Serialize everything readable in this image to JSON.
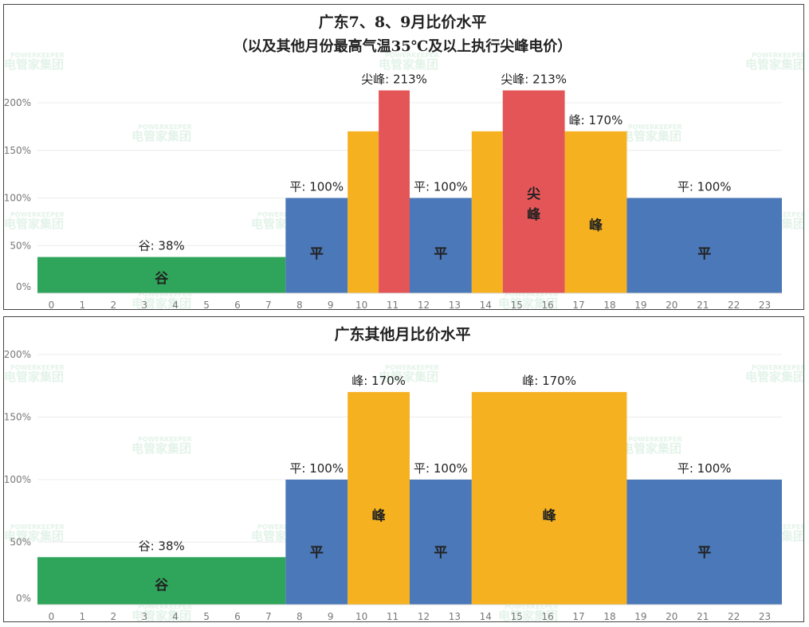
{
  "watermark": {
    "brand_en": "POWERKEEPER",
    "brand_cn": "电管家集团"
  },
  "colors": {
    "谷": "#2ea55a",
    "平": "#4a78b8",
    "峰": "#f5b120",
    "尖峰": "#e45558",
    "grid": "#ececec"
  },
  "chart_data": [
    {
      "type": "bar",
      "title": "广东7、8、9月比价水平",
      "subtitle": "（以及其他月份最高气温35℃及以上执行尖峰电价）",
      "xlabel": "",
      "ylabel": "",
      "x_ticks": [
        "0",
        "1",
        "2",
        "3",
        "4",
        "5",
        "6",
        "7",
        "8",
        "9",
        "10",
        "11",
        "12",
        "13",
        "14",
        "15",
        "16",
        "17",
        "18",
        "19",
        "20",
        "21",
        "22",
        "23"
      ],
      "y_ticks": [
        "0%",
        "50%",
        "100%",
        "150%",
        "200%"
      ],
      "ylim": [
        0,
        200
      ],
      "grid": true,
      "segments": [
        {
          "start": 0,
          "end": 8,
          "value": 38,
          "type": "谷",
          "label": "谷: 38%",
          "inner": "谷"
        },
        {
          "start": 8,
          "end": 10,
          "value": 100,
          "type": "平",
          "label": "平: 100%",
          "inner": "平"
        },
        {
          "start": 10,
          "end": 11,
          "value": 170,
          "type": "峰",
          "label": "",
          "inner": ""
        },
        {
          "start": 11,
          "end": 12,
          "value": 213,
          "type": "尖峰",
          "label": "尖峰: 213%",
          "inner": ""
        },
        {
          "start": 12,
          "end": 14,
          "value": 100,
          "type": "平",
          "label": "平: 100%",
          "inner": "平"
        },
        {
          "start": 14,
          "end": 15,
          "value": 170,
          "type": "峰",
          "label": "",
          "inner": ""
        },
        {
          "start": 15,
          "end": 17,
          "value": 213,
          "type": "尖峰",
          "label": "尖峰: 213%",
          "inner": "尖峰"
        },
        {
          "start": 17,
          "end": 19,
          "value": 170,
          "type": "峰",
          "label": "峰: 170%",
          "inner": "峰"
        },
        {
          "start": 19,
          "end": 24,
          "value": 100,
          "type": "平",
          "label": "平: 100%",
          "inner": "平"
        }
      ]
    },
    {
      "type": "bar",
      "title": "广东其他月比价水平",
      "xlabel": "",
      "ylabel": "",
      "x_ticks": [
        "0",
        "1",
        "2",
        "3",
        "4",
        "5",
        "6",
        "7",
        "8",
        "9",
        "10",
        "11",
        "12",
        "13",
        "14",
        "15",
        "16",
        "17",
        "18",
        "19",
        "20",
        "21",
        "22",
        "23"
      ],
      "y_ticks": [
        "0%",
        "50%",
        "100%",
        "150%",
        "200%"
      ],
      "ylim": [
        0,
        200
      ],
      "grid": true,
      "segments": [
        {
          "start": 0,
          "end": 8,
          "value": 38,
          "type": "谷",
          "label": "谷: 38%",
          "inner": "谷"
        },
        {
          "start": 8,
          "end": 10,
          "value": 100,
          "type": "平",
          "label": "平: 100%",
          "inner": "平"
        },
        {
          "start": 10,
          "end": 12,
          "value": 170,
          "type": "峰",
          "label": "峰: 170%",
          "inner": "峰"
        },
        {
          "start": 12,
          "end": 14,
          "value": 100,
          "type": "平",
          "label": "平: 100%",
          "inner": "平"
        },
        {
          "start": 14,
          "end": 19,
          "value": 170,
          "type": "峰",
          "label": "峰: 170%",
          "inner": "峰"
        },
        {
          "start": 19,
          "end": 24,
          "value": 100,
          "type": "平",
          "label": "平: 100%",
          "inner": "平"
        }
      ]
    }
  ]
}
